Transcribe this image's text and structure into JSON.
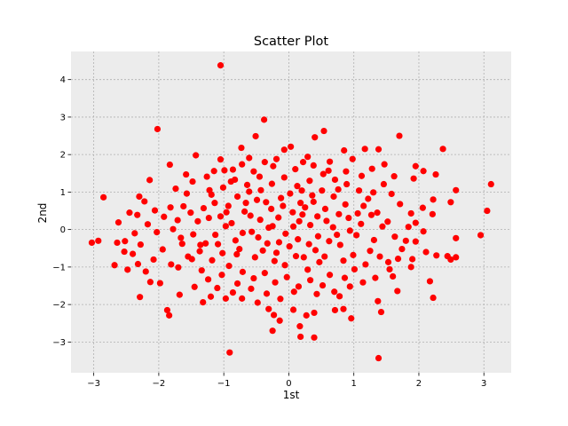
{
  "chart_data": {
    "type": "scatter",
    "title": "Scatter Plot",
    "xlabel": "1st",
    "ylabel": "2nd",
    "xlim": [
      -3.35,
      3.42
    ],
    "ylim": [
      -3.82,
      4.75
    ],
    "xticks": [
      -3,
      -2,
      -1,
      0,
      1,
      2,
      3
    ],
    "yticks": [
      -3,
      -2,
      -1,
      0,
      1,
      2,
      3,
      4
    ],
    "grid": true,
    "legend": "none",
    "colors": {
      "axes_background": "#ececec",
      "marker": "#ff0000",
      "grid": "#b0b0b0"
    },
    "series": [
      {
        "points": [
          [
            -1.05,
            4.38
          ],
          [
            -0.38,
            2.93
          ],
          [
            -2.02,
            2.68
          ],
          [
            -0.51,
            2.49
          ],
          [
            0.54,
            2.63
          ],
          [
            0.4,
            2.46
          ],
          [
            1.7,
            2.5
          ],
          [
            2.37,
            2.15
          ],
          [
            -1.83,
            1.73
          ],
          [
            -0.73,
            2.18
          ],
          [
            -0.07,
            2.13
          ],
          [
            0.03,
            2.21
          ],
          [
            0.85,
            2.11
          ],
          [
            1.17,
            2.15
          ],
          [
            1.38,
            2.14
          ],
          [
            -1.43,
            1.98
          ],
          [
            -1.05,
            1.87
          ],
          [
            -0.37,
            1.8
          ],
          [
            0.22,
            1.8
          ],
          [
            0.98,
            1.88
          ],
          [
            1.95,
            1.69
          ],
          [
            2.07,
            1.56
          ],
          [
            2.26,
            1.47
          ],
          [
            -1.58,
            1.47
          ],
          [
            -1.15,
            1.56
          ],
          [
            -0.86,
            1.6
          ],
          [
            -0.54,
            1.55
          ],
          [
            0.1,
            1.61
          ],
          [
            0.61,
            1.57
          ],
          [
            1.62,
            1.42
          ],
          [
            1.92,
            1.36
          ],
          [
            3.11,
            1.21
          ],
          [
            -2.85,
            0.86
          ],
          [
            -2.3,
            0.88
          ],
          [
            -2.14,
            1.32
          ],
          [
            -2.22,
            0.75
          ],
          [
            -2.45,
            0.45
          ],
          [
            -2.06,
            0.51
          ],
          [
            -1.82,
            0.59
          ],
          [
            -1.57,
            0.96
          ],
          [
            -1.22,
            1.05
          ],
          [
            -0.89,
            1.28
          ],
          [
            2.57,
            1.05
          ],
          [
            2.22,
            0.8
          ],
          [
            2.49,
            0.73
          ],
          [
            3.05,
            0.5
          ],
          [
            2.06,
            0.58
          ],
          [
            2.21,
            0.41
          ],
          [
            1.88,
            0.43
          ],
          [
            -3.03,
            -0.35
          ],
          [
            -2.93,
            -0.3
          ],
          [
            -2.64,
            -0.35
          ],
          [
            -2.62,
            0.19
          ],
          [
            -2.53,
            -0.59
          ],
          [
            -2.37,
            -0.1
          ],
          [
            -2.28,
            -0.4
          ],
          [
            -2.68,
            -0.95
          ],
          [
            -2.48,
            -1.07
          ],
          [
            -2.32,
            -0.92
          ],
          [
            -2.08,
            -0.8
          ],
          [
            -2.13,
            -1.4
          ],
          [
            -1.98,
            -1.43
          ],
          [
            -2.29,
            -1.8
          ],
          [
            -1.87,
            -2.15
          ],
          [
            -1.84,
            -2.29
          ],
          [
            -1.68,
            -1.74
          ],
          [
            -1.45,
            -1.53
          ],
          [
            -1.32,
            -1.94
          ],
          [
            -1.2,
            -1.79
          ],
          [
            -0.97,
            -1.84
          ],
          [
            -0.72,
            -1.84
          ],
          [
            -0.48,
            -1.95
          ],
          [
            -0.31,
            -2.12
          ],
          [
            -0.23,
            -2.28
          ],
          [
            -0.25,
            -2.7
          ],
          [
            -0.14,
            -2.43
          ],
          [
            0.07,
            -2.14
          ],
          [
            0.27,
            -2.29
          ],
          [
            0.39,
            -2.22
          ],
          [
            0.17,
            -2.58
          ],
          [
            0.18,
            -2.86
          ],
          [
            0.39,
            -2.88
          ],
          [
            0.71,
            -2.15
          ],
          [
            0.84,
            -2.12
          ],
          [
            0.96,
            -2.37
          ],
          [
            1.37,
            -1.91
          ],
          [
            1.42,
            -2.2
          ],
          [
            1.38,
            -3.43
          ],
          [
            -0.91,
            -3.28
          ],
          [
            1.67,
            -1.64
          ],
          [
            1.88,
            -1.0
          ],
          [
            2.17,
            -1.38
          ],
          [
            2.22,
            -1.82
          ],
          [
            2.27,
            -0.69
          ],
          [
            2.44,
            -0.71
          ],
          [
            2.49,
            -0.8
          ],
          [
            2.57,
            -0.74
          ],
          [
            2.57,
            -0.23
          ],
          [
            2.95,
            -0.15
          ],
          [
            1.95,
            -0.32
          ],
          [
            1.9,
            -0.79
          ],
          [
            2.11,
            -0.6
          ],
          [
            2.07,
            -0.05
          ],
          [
            1.6,
            -1.25
          ],
          [
            1.53,
            -0.87
          ],
          [
            -1.7,
            -1.01
          ],
          [
            -1.55,
            -0.72
          ],
          [
            -1.64,
            -0.38
          ],
          [
            -1.47,
            -0.13
          ],
          [
            -1.36,
            -0.41
          ],
          [
            -1.71,
            0.25
          ],
          [
            -1.78,
            0.01
          ],
          [
            -0.25,
            0.09
          ],
          [
            -0.16,
            0.32
          ],
          [
            -0.05,
            -0.11
          ],
          [
            0.07,
            0.08
          ],
          [
            0.14,
            -0.26
          ],
          [
            0.21,
            0.4
          ],
          [
            0.33,
            0.12
          ],
          [
            0.45,
            -0.18
          ],
          [
            -0.33,
            -0.37
          ],
          [
            -0.44,
            0.26
          ],
          [
            -0.57,
            -0.06
          ],
          [
            -0.68,
            0.48
          ],
          [
            -0.76,
            -0.52
          ],
          [
            -0.88,
            0.17
          ],
          [
            0.56,
            0.55
          ],
          [
            0.68,
            0.06
          ],
          [
            0.79,
            -0.41
          ],
          [
            0.92,
            0.31
          ],
          [
            1.04,
            -0.15
          ],
          [
            1.15,
            0.63
          ],
          [
            1.25,
            -0.57
          ],
          [
            -0.12,
            0.84
          ],
          [
            0.02,
            0.96
          ],
          [
            0.18,
            0.71
          ],
          [
            0.36,
            0.91
          ],
          [
            0.51,
            1.04
          ],
          [
            -0.22,
            -0.84
          ],
          [
            -0.06,
            -0.95
          ],
          [
            0.11,
            -0.71
          ],
          [
            0.29,
            -1.07
          ],
          [
            0.47,
            -0.87
          ],
          [
            0.63,
            -1.21
          ],
          [
            -0.49,
            0.79
          ],
          [
            -0.61,
            1.01
          ],
          [
            -0.79,
            0.88
          ],
          [
            -0.93,
            0.63
          ],
          [
            -1.05,
            0.35
          ],
          [
            -1.13,
            -0.14
          ],
          [
            -1.02,
            -0.63
          ],
          [
            -0.92,
            -0.97
          ],
          [
            -0.71,
            -1.13
          ],
          [
            -0.54,
            -1.3
          ],
          [
            -0.37,
            -1.16
          ],
          [
            -0.21,
            -1.41
          ],
          [
            -0.03,
            -1.27
          ],
          [
            0.15,
            -1.52
          ],
          [
            0.33,
            -1.35
          ],
          [
            0.52,
            -1.49
          ],
          [
            0.7,
            -1.66
          ],
          [
            0.86,
            -1.29
          ],
          [
            1.01,
            -1.06
          ],
          [
            1.18,
            -0.93
          ],
          [
            1.31,
            -0.28
          ],
          [
            1.44,
            0.08
          ],
          [
            1.36,
            0.45
          ],
          [
            1.22,
            0.82
          ],
          [
            1.08,
            1.04
          ],
          [
            0.89,
            1.21
          ],
          [
            0.71,
            1.33
          ],
          [
            0.53,
            1.48
          ],
          [
            0.32,
            1.3
          ],
          [
            0.13,
            1.16
          ],
          [
            -0.07,
            1.39
          ],
          [
            -0.26,
            1.22
          ],
          [
            -0.45,
            1.41
          ],
          [
            -0.64,
            1.19
          ],
          [
            -0.83,
            1.33
          ],
          [
            -1.01,
            1.12
          ],
          [
            -1.19,
            0.93
          ],
          [
            -1.31,
            0.57
          ],
          [
            -1.4,
            0.22
          ],
          [
            -1.28,
            -0.37
          ],
          [
            -1.18,
            -0.82
          ],
          [
            -1.34,
            -1.09
          ],
          [
            -1.49,
            -0.79
          ],
          [
            -1.62,
            0.62
          ],
          [
            -1.92,
            0.34
          ],
          [
            -2.03,
            -0.07
          ],
          [
            -1.94,
            -0.53
          ],
          [
            -1.81,
            -0.93
          ],
          [
            -0.4,
            -0.56
          ],
          [
            -0.27,
            0.55
          ],
          [
            0.25,
            0.59
          ],
          [
            0.41,
            -0.55
          ],
          [
            0.58,
            0.23
          ],
          [
            0.74,
            -0.14
          ],
          [
            0.87,
            0.67
          ],
          [
            0.99,
            -0.68
          ],
          [
            1.11,
            0.15
          ],
          [
            1.27,
            0.39
          ],
          [
            1.52,
            0.21
          ],
          [
            1.63,
            -0.19
          ],
          [
            1.74,
            -0.52
          ],
          [
            1.84,
            0.07
          ],
          [
            1.71,
            0.68
          ],
          [
            1.58,
            0.95
          ],
          [
            1.46,
            1.21
          ],
          [
            -0.15,
            -0.34
          ],
          [
            -0.31,
            0.05
          ],
          [
            -0.47,
            -0.21
          ],
          [
            -0.59,
            0.37
          ],
          [
            -0.71,
            -0.09
          ],
          [
            -0.82,
            -0.29
          ],
          [
            -0.97,
            0.09
          ],
          [
            0.01,
            -0.45
          ],
          [
            0.16,
            0.22
          ],
          [
            0.31,
            -0.39
          ],
          [
            0.44,
            0.35
          ],
          [
            0.62,
            -0.31
          ],
          [
            0.77,
            0.41
          ],
          [
            0.94,
            -0.03
          ],
          [
            1.06,
            0.43
          ],
          [
            -0.09,
            0.63
          ],
          [
            -0.19,
            -0.62
          ],
          [
            0.06,
            0.46
          ],
          [
            0.23,
            -0.74
          ],
          [
            0.38,
            0.74
          ],
          [
            0.55,
            -0.72
          ],
          [
            0.69,
            0.88
          ],
          [
            0.84,
            -0.83
          ],
          [
            -0.35,
            0.73
          ],
          [
            -0.52,
            -0.74
          ],
          [
            -0.66,
            0.71
          ],
          [
            -0.8,
            -0.66
          ],
          [
            -0.96,
            0.46
          ],
          [
            -1.09,
            -0.39
          ],
          [
            -1.23,
            0.31
          ],
          [
            -1.37,
            -0.58
          ],
          [
            -1.51,
            0.45
          ],
          [
            -1.66,
            -0.22
          ],
          [
            -1.14,
            0.71
          ],
          [
            -0.43,
            1.05
          ],
          [
            0.2,
            1.04
          ],
          [
            0.76,
            1.07
          ],
          [
            1.3,
            0.99
          ],
          [
            1.4,
            -0.72
          ],
          [
            1.33,
            -1.29
          ],
          [
            1.14,
            -1.41
          ],
          [
            0.94,
            -1.52
          ],
          [
            0.78,
            -1.78
          ],
          [
            0.43,
            -1.72
          ],
          [
            0.08,
            -1.66
          ],
          [
            -0.13,
            -1.85
          ],
          [
            -0.34,
            -1.71
          ],
          [
            -0.58,
            -1.58
          ],
          [
            -0.79,
            -1.44
          ],
          [
            -1.03,
            -1.21
          ],
          [
            -1.24,
            -1.33
          ],
          [
            -1.1,
            -1.56
          ],
          [
            -0.86,
            -1.68
          ],
          [
            1.55,
            -1.06
          ],
          [
            1.68,
            -0.78
          ],
          [
            1.8,
            -0.3
          ],
          [
            1.95,
            0.18
          ],
          [
            -2.17,
            0.14
          ],
          [
            -2.4,
            -0.65
          ],
          [
            -2.2,
            -1.12
          ],
          [
            -2.33,
            0.39
          ],
          [
            -2.52,
            -0.31
          ],
          [
            -1.74,
            1.09
          ],
          [
            -1.48,
            1.28
          ],
          [
            -1.26,
            1.41
          ],
          [
            -0.99,
            1.58
          ],
          [
            -0.72,
            1.74
          ],
          [
            -0.24,
            1.69
          ],
          [
            0.38,
            1.71
          ],
          [
            0.63,
            1.81
          ],
          [
            0.88,
            1.55
          ],
          [
            1.12,
            1.43
          ],
          [
            1.28,
            1.62
          ],
          [
            -0.19,
            1.88
          ],
          [
            0.29,
            1.94
          ],
          [
            -0.61,
            1.91
          ],
          [
            1.47,
            1.74
          ]
        ]
      }
    ]
  }
}
